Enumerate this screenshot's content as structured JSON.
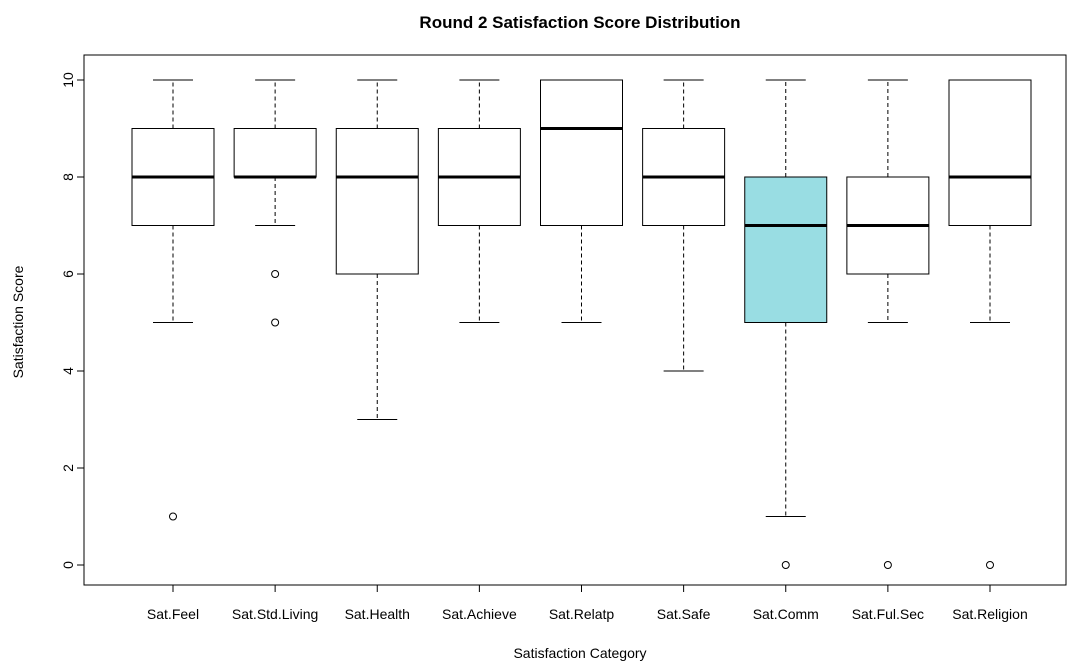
{
  "chart_data": {
    "type": "boxplot",
    "title": "Round 2 Satisfaction Score Distribution",
    "xlabel": "Satisfaction Category",
    "ylabel": "Satisfaction Score",
    "ylim": [
      0,
      10
    ],
    "yticks": [
      0,
      2,
      4,
      6,
      8,
      10
    ],
    "grid": false,
    "highlight_color": "#99dde3",
    "default_color": "#ffffff",
    "categories": [
      "Sat.Feel",
      "Sat.Std.Living",
      "Sat.Health",
      "Sat.Achieve",
      "Sat.Relatp",
      "Sat.Safe",
      "Sat.Comm",
      "Sat.Ful.Sec",
      "Sat.Religion"
    ],
    "boxes": [
      {
        "min": 5,
        "q1": 7,
        "median": 8,
        "q3": 9,
        "max": 10,
        "outliers": [
          1
        ],
        "highlight": false
      },
      {
        "min": 7,
        "q1": 8,
        "median": 8,
        "q3": 9,
        "max": 10,
        "outliers": [
          6,
          5
        ],
        "highlight": false
      },
      {
        "min": 3,
        "q1": 6,
        "median": 8,
        "q3": 9,
        "max": 10,
        "outliers": [],
        "highlight": false
      },
      {
        "min": 5,
        "q1": 7,
        "median": 8,
        "q3": 9,
        "max": 10,
        "outliers": [],
        "highlight": false
      },
      {
        "min": 5,
        "q1": 7,
        "median": 9,
        "q3": 10,
        "max": 10,
        "outliers": [],
        "highlight": false
      },
      {
        "min": 4,
        "q1": 7,
        "median": 8,
        "q3": 9,
        "max": 10,
        "outliers": [],
        "highlight": false
      },
      {
        "min": 1,
        "q1": 5,
        "median": 7,
        "q3": 8,
        "max": 10,
        "outliers": [
          0
        ],
        "highlight": true
      },
      {
        "min": 5,
        "q1": 6,
        "median": 7,
        "q3": 8,
        "max": 10,
        "outliers": [
          0
        ],
        "highlight": false
      },
      {
        "min": 5,
        "q1": 7,
        "median": 8,
        "q3": 10,
        "max": 10,
        "outliers": [
          0
        ],
        "highlight": false
      }
    ]
  }
}
